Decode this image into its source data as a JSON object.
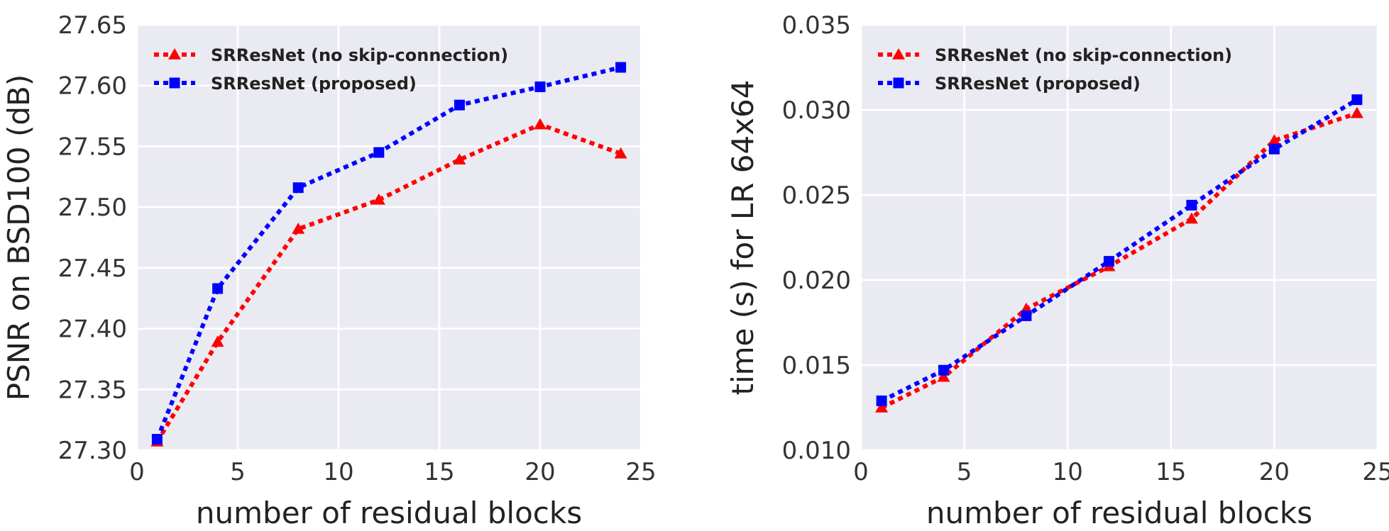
{
  "chart_data": [
    {
      "type": "line",
      "title": "",
      "xlabel": "number of residual blocks",
      "ylabel": "PSNR on BSD100 (dB)",
      "xlim": [
        0,
        25
      ],
      "ylim": [
        27.3,
        27.65
      ],
      "xticks": [
        "0",
        "5",
        "10",
        "15",
        "20",
        "25"
      ],
      "yticks": [
        "27.30",
        "27.35",
        "27.40",
        "27.45",
        "27.50",
        "27.55",
        "27.60",
        "27.65"
      ],
      "grid": true,
      "legend_position": "top-left",
      "x": [
        1,
        4,
        8,
        12,
        16,
        20,
        24
      ],
      "series": [
        {
          "name": "SRResNet (no skip-connection)",
          "color": "#FF0000",
          "marker": "triangle",
          "linestyle": "dotted",
          "values": [
            27.307,
            27.389,
            27.482,
            27.506,
            27.539,
            27.568,
            27.544
          ]
        },
        {
          "name": "SRResNet (proposed)",
          "color": "#0000FF",
          "marker": "square",
          "linestyle": "dotted",
          "values": [
            27.309,
            27.433,
            27.516,
            27.545,
            27.584,
            27.599,
            27.615
          ]
        }
      ]
    },
    {
      "type": "line",
      "title": "",
      "xlabel": "number of residual blocks",
      "ylabel": "time (s) for LR 64x64",
      "xlim": [
        0,
        25
      ],
      "ylim": [
        0.01,
        0.035
      ],
      "xticks": [
        "0",
        "5",
        "10",
        "15",
        "20",
        "25"
      ],
      "yticks": [
        "0.010",
        "0.015",
        "0.020",
        "0.025",
        "0.030",
        "0.035"
      ],
      "grid": true,
      "legend_position": "top-left",
      "x": [
        1,
        4,
        8,
        12,
        16,
        20,
        24
      ],
      "series": [
        {
          "name": "SRResNet (no skip-connection)",
          "color": "#FF0000",
          "marker": "triangle",
          "linestyle": "dotted",
          "values": [
            0.0125,
            0.0143,
            0.0183,
            0.0208,
            0.0236,
            0.0282,
            0.0298
          ]
        },
        {
          "name": "SRResNet (proposed)",
          "color": "#0000FF",
          "marker": "square",
          "linestyle": "dotted",
          "values": [
            0.0129,
            0.0147,
            0.0179,
            0.0211,
            0.0244,
            0.0277,
            0.0306
          ]
        }
      ]
    }
  ]
}
